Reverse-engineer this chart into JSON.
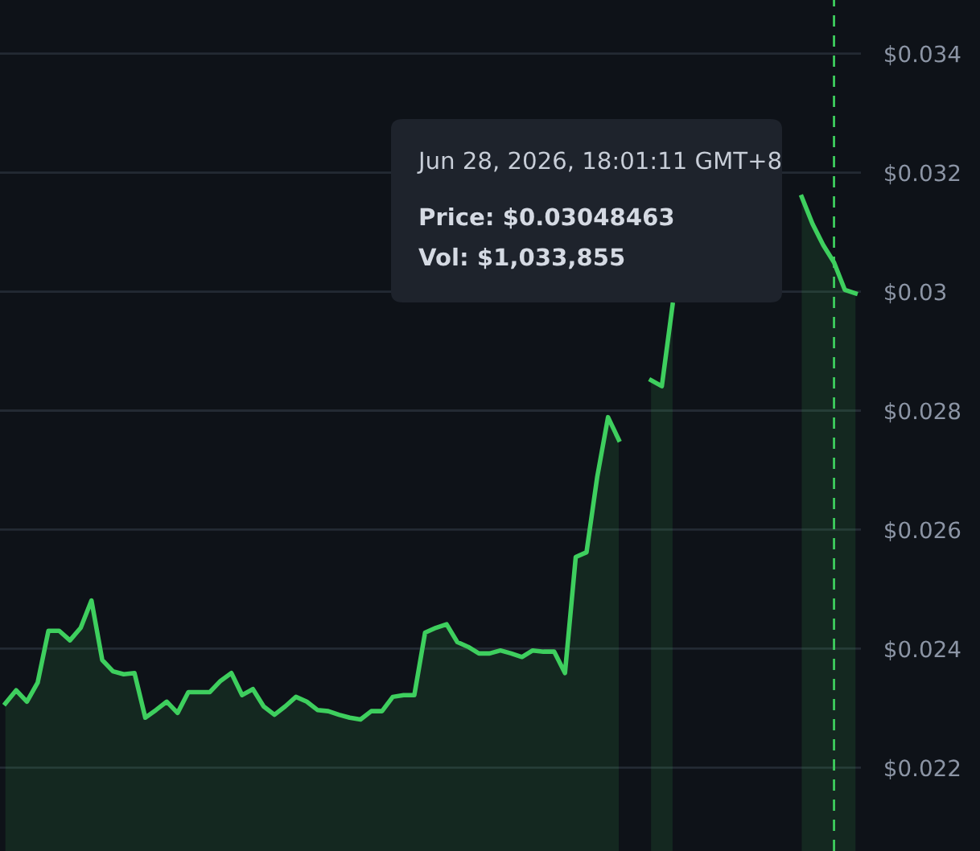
{
  "chart_data": {
    "type": "area",
    "categories": [
      null,
      null,
      null,
      null,
      null,
      null,
      null,
      null,
      null,
      null,
      null,
      null,
      null,
      null,
      null,
      null,
      null,
      null,
      null,
      null,
      null,
      null,
      null,
      null,
      null,
      null,
      null,
      null,
      null,
      null,
      null,
      null,
      null,
      null,
      null,
      null,
      null,
      null,
      null,
      null,
      null,
      null,
      null,
      null,
      null,
      null,
      null,
      null,
      null,
      null,
      null,
      null,
      null,
      null,
      null,
      null,
      null,
      null,
      null,
      null,
      null,
      null,
      null,
      null,
      null,
      null,
      null,
      null,
      null,
      null,
      null,
      null,
      null,
      null,
      null,
      null,
      null,
      null,
      null,
      null
    ],
    "series": [
      {
        "color": "#3ecf5e",
        "values": [
          0.02308,
          0.0233,
          0.02311,
          0.02343,
          0.0243,
          0.0243,
          0.02414,
          0.02435,
          0.02481,
          0.02381,
          0.02362,
          0.02357,
          0.02359,
          0.02284,
          0.02297,
          0.02311,
          0.02292,
          0.02327,
          0.02327,
          0.02327,
          0.02346,
          0.02359,
          0.02322,
          0.02332,
          0.02303,
          0.02289,
          0.02303,
          0.02319,
          0.02311,
          0.02297,
          0.02295,
          0.02289,
          0.02284,
          0.02281,
          0.02295,
          0.02295,
          0.02319,
          0.02322,
          0.02322,
          0.02427,
          0.02435,
          0.02441,
          0.02411,
          0.02403,
          0.02392,
          0.02392,
          0.02397,
          0.02392,
          0.02386,
          0.02397,
          0.02395,
          0.02395,
          0.02359,
          0.02554,
          0.02562,
          0.02689,
          0.02789,
          0.02751,
          null,
          null,
          null,
          null,
          null,
          null,
          null,
          null,
          null,
          null,
          null,
          null,
          null,
          null,
          null,
          null,
          null,
          null,
          null,
          null,
          null,
          null
        ]
      },
      {
        "color": "#3ecf5e",
        "values": [
          null,
          null,
          null,
          null,
          null,
          null,
          null,
          null,
          null,
          null,
          null,
          null,
          null,
          null,
          null,
          null,
          null,
          null,
          null,
          null,
          null,
          null,
          null,
          null,
          null,
          null,
          null,
          null,
          null,
          null,
          null,
          null,
          null,
          null,
          null,
          null,
          null,
          null,
          null,
          null,
          null,
          null,
          null,
          null,
          null,
          null,
          null,
          null,
          null,
          null,
          null,
          null,
          null,
          null,
          null,
          null,
          null,
          null,
          null,
          null,
          0.02851,
          0.02841,
          0.02978,
          null,
          null,
          null,
          null,
          null,
          null,
          null,
          null,
          null,
          null,
          null,
          null,
          null,
          null,
          null,
          null,
          null
        ]
      },
      {
        "color": "#3ecf5e",
        "values": [
          null,
          null,
          null,
          null,
          null,
          null,
          null,
          null,
          null,
          null,
          null,
          null,
          null,
          null,
          null,
          null,
          null,
          null,
          null,
          null,
          null,
          null,
          null,
          null,
          null,
          null,
          null,
          null,
          null,
          null,
          null,
          null,
          null,
          null,
          null,
          null,
          null,
          null,
          null,
          null,
          null,
          null,
          null,
          null,
          null,
          null,
          null,
          null,
          null,
          null,
          null,
          null,
          null,
          null,
          null,
          null,
          null,
          null,
          null,
          null,
          null,
          null,
          null,
          null,
          null,
          null,
          null,
          null,
          null,
          null,
          null,
          null,
          null,
          null,
          0.03159,
          0.03114,
          0.03078,
          0.03049,
          0.03003,
          0.02997
        ]
      }
    ],
    "ylim": [
      0.0206,
      0.0349
    ],
    "yticks": [
      {
        "value": 0.022,
        "label": "$0.022"
      },
      {
        "value": 0.024,
        "label": "$0.024"
      },
      {
        "value": 0.026,
        "label": "$0.026"
      },
      {
        "value": 0.028,
        "label": "$0.028"
      },
      {
        "value": 0.03,
        "label": "$0.03"
      },
      {
        "value": 0.032,
        "label": "$0.032"
      },
      {
        "value": 0.034,
        "label": "$0.034"
      }
    ],
    "tick_labels": "y",
    "grid": "y",
    "legend": false,
    "annotations": [
      "Jun 28, 2026, 18:01:11 GMT+8",
      "Price: $0.03048463",
      "Vol: $1,033,855"
    ]
  }
}
